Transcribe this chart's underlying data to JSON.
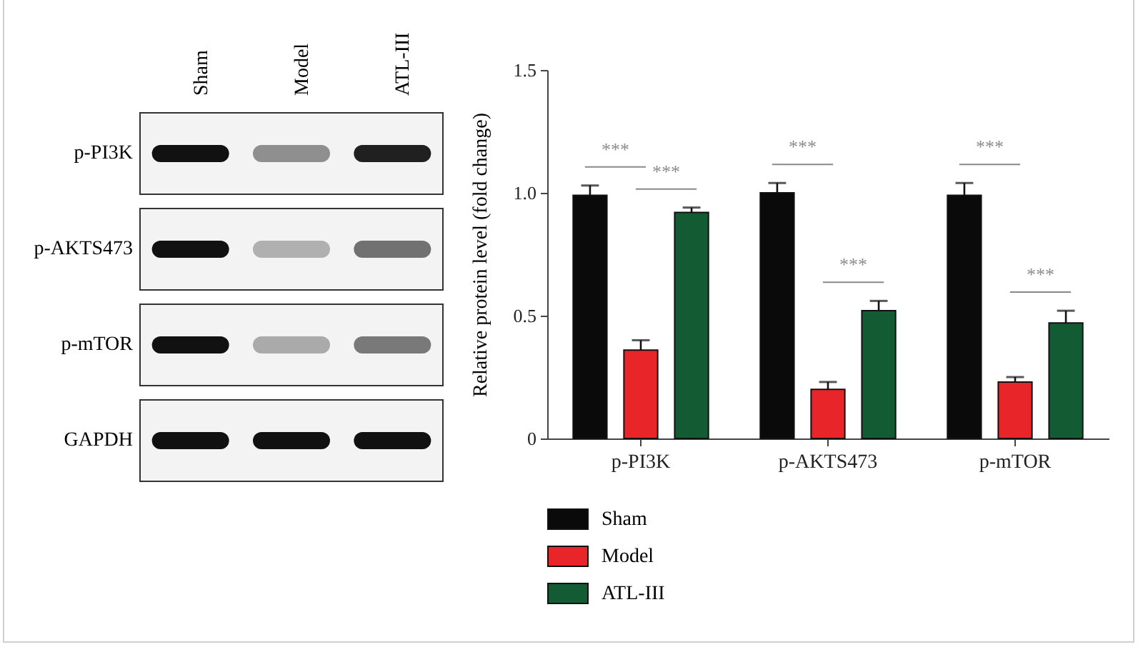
{
  "chart_data": {
    "type": "bar",
    "categories": [
      "p-PI3K",
      "p-AKTS473",
      "p-mTOR"
    ],
    "series": [
      {
        "name": "Sham",
        "color": "#0a0a0a",
        "values": [
          0.99,
          1.0,
          0.99
        ],
        "errors": [
          0.04,
          0.04,
          0.05
        ]
      },
      {
        "name": "Model",
        "color": "#e8262a",
        "values": [
          0.36,
          0.2,
          0.23
        ],
        "errors": [
          0.04,
          0.03,
          0.02
        ]
      },
      {
        "name": "ATL-III",
        "color": "#135c33",
        "values": [
          0.92,
          0.52,
          0.47
        ],
        "errors": [
          0.02,
          0.04,
          0.05
        ]
      }
    ],
    "ylabel": "Relative protein level (fold change)",
    "ylim": [
      0,
      1.5
    ],
    "yticks": [
      0,
      0.5,
      {
        "value": 1,
        "label": "1.0"
      },
      1.5
    ],
    "grid": false,
    "legend": "bottom left",
    "annotations": [
      "***",
      "***",
      "***",
      "***",
      "***",
      "***",
      "GAPDH"
    ]
  }
}
